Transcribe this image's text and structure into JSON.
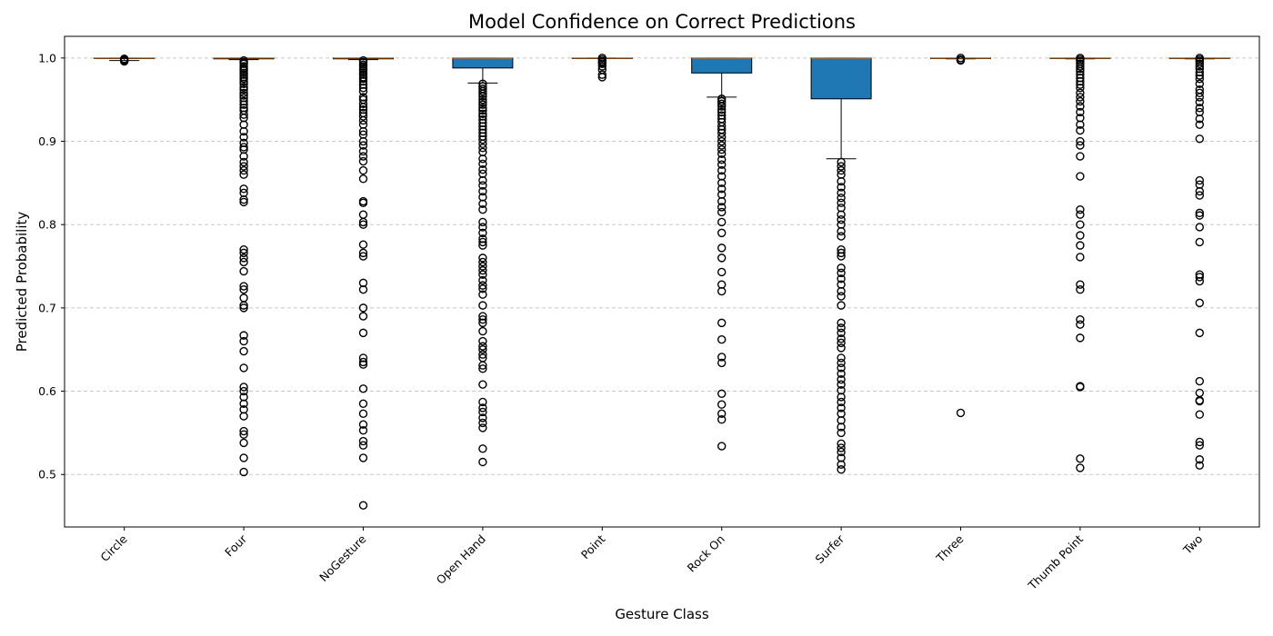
{
  "chart_data": {
    "type": "boxplot",
    "title": "Model Confidence on Correct Predictions",
    "xlabel": "Gesture Class",
    "ylabel": "Predicted Probability",
    "ylim": [
      0.437,
      1.026
    ],
    "yticks": [
      0.5,
      0.6,
      0.7,
      0.8,
      0.9,
      1.0
    ],
    "ytick_labels": [
      "0.5",
      "0.6",
      "0.7",
      "0.8",
      "0.9",
      "1.0"
    ],
    "grid": "y-dashed",
    "colors": {
      "box_fill": "#1f77b4",
      "median": "#ff7f0e",
      "grid": "#c8c8c8",
      "edge": "#000000"
    },
    "categories": [
      "Circle",
      "Four",
      "NoGesture",
      "Open Hand",
      "Point",
      "Rock On",
      "Surfer",
      "Three",
      "Thumb Point",
      "Two"
    ],
    "boxes": [
      {
        "label": "Circle",
        "whislo": 0.997,
        "q1": 1.0,
        "med": 1.0,
        "q3": 1.0,
        "whishi": 1.0,
        "fliers": [
          0.996,
          0.997,
          0.998,
          0.999
        ]
      },
      {
        "label": "Four",
        "whislo": 0.998,
        "q1": 0.999,
        "med": 1.0,
        "q3": 1.0,
        "whishi": 1.0,
        "fliers": [
          0.997,
          0.995,
          0.993,
          0.99,
          0.987,
          0.985,
          0.982,
          0.98,
          0.977,
          0.975,
          0.972,
          0.969,
          0.965,
          0.962,
          0.958,
          0.955,
          0.952,
          0.948,
          0.944,
          0.94,
          0.937,
          0.932,
          0.928,
          0.92,
          0.912,
          0.905,
          0.898,
          0.893,
          0.89,
          0.882,
          0.875,
          0.87,
          0.865,
          0.86,
          0.843,
          0.838,
          0.83,
          0.827,
          0.77,
          0.766,
          0.76,
          0.755,
          0.744,
          0.726,
          0.722,
          0.712,
          0.703,
          0.7,
          0.667,
          0.66,
          0.648,
          0.628,
          0.605,
          0.6,
          0.593,
          0.585,
          0.578,
          0.57,
          0.552,
          0.548,
          0.538,
          0.52,
          0.503
        ]
      },
      {
        "label": "NoGesture",
        "whislo": 0.998,
        "q1": 0.999,
        "med": 1.0,
        "q3": 1.0,
        "whishi": 1.0,
        "fliers": [
          0.997,
          0.995,
          0.992,
          0.99,
          0.987,
          0.985,
          0.982,
          0.98,
          0.977,
          0.975,
          0.972,
          0.968,
          0.964,
          0.96,
          0.953,
          0.95,
          0.945,
          0.941,
          0.938,
          0.934,
          0.93,
          0.925,
          0.92,
          0.912,
          0.908,
          0.9,
          0.895,
          0.888,
          0.882,
          0.876,
          0.865,
          0.855,
          0.828,
          0.826,
          0.812,
          0.803,
          0.8,
          0.776,
          0.766,
          0.762,
          0.73,
          0.722,
          0.7,
          0.69,
          0.67,
          0.64,
          0.635,
          0.632,
          0.603,
          0.585,
          0.573,
          0.56,
          0.553,
          0.54,
          0.535,
          0.52,
          0.463
        ]
      },
      {
        "label": "Open Hand",
        "whislo": 0.97,
        "q1": 0.988,
        "med": 1.0,
        "q3": 1.0,
        "whishi": 1.0,
        "fliers": [
          0.969,
          0.966,
          0.963,
          0.96,
          0.957,
          0.954,
          0.95,
          0.947,
          0.944,
          0.94,
          0.937,
          0.933,
          0.93,
          0.926,
          0.922,
          0.918,
          0.914,
          0.91,
          0.906,
          0.902,
          0.897,
          0.892,
          0.887,
          0.879,
          0.873,
          0.866,
          0.861,
          0.853,
          0.847,
          0.84,
          0.833,
          0.825,
          0.818,
          0.803,
          0.797,
          0.79,
          0.783,
          0.779,
          0.775,
          0.76,
          0.755,
          0.75,
          0.745,
          0.74,
          0.733,
          0.727,
          0.723,
          0.716,
          0.703,
          0.69,
          0.686,
          0.682,
          0.672,
          0.66,
          0.654,
          0.65,
          0.644,
          0.64,
          0.631,
          0.627,
          0.608,
          0.587,
          0.58,
          0.575,
          0.568,
          0.562,
          0.556,
          0.531,
          0.515
        ]
      },
      {
        "label": "Point",
        "whislo": 1.0,
        "q1": 1.0,
        "med": 1.0,
        "q3": 1.0,
        "whishi": 1.0,
        "fliers": [
          1.0,
          0.998,
          0.996,
          0.995,
          0.993,
          0.99,
          0.986,
          0.98,
          0.977
        ]
      },
      {
        "label": "Rock On",
        "whislo": 0.953,
        "q1": 0.982,
        "med": 1.0,
        "q3": 1.0,
        "whishi": 1.0,
        "fliers": [
          0.951,
          0.948,
          0.945,
          0.942,
          0.938,
          0.935,
          0.931,
          0.927,
          0.923,
          0.918,
          0.914,
          0.91,
          0.905,
          0.9,
          0.895,
          0.89,
          0.885,
          0.878,
          0.872,
          0.865,
          0.858,
          0.85,
          0.843,
          0.836,
          0.828,
          0.821,
          0.815,
          0.803,
          0.79,
          0.772,
          0.76,
          0.743,
          0.728,
          0.72,
          0.682,
          0.662,
          0.641,
          0.634,
          0.597,
          0.584,
          0.573,
          0.566,
          0.534
        ]
      },
      {
        "label": "Surfer",
        "whislo": 0.879,
        "q1": 0.951,
        "med": 1.0,
        "q3": 1.0,
        "whishi": 1.0,
        "fliers": [
          0.875,
          0.87,
          0.865,
          0.86,
          0.852,
          0.845,
          0.838,
          0.832,
          0.826,
          0.82,
          0.812,
          0.806,
          0.8,
          0.792,
          0.786,
          0.77,
          0.766,
          0.762,
          0.748,
          0.742,
          0.735,
          0.728,
          0.72,
          0.714,
          0.703,
          0.682,
          0.676,
          0.67,
          0.663,
          0.658,
          0.652,
          0.64,
          0.634,
          0.628,
          0.621,
          0.614,
          0.608,
          0.601,
          0.593,
          0.587,
          0.58,
          0.573,
          0.565,
          0.557,
          0.55,
          0.537,
          0.532,
          0.527,
          0.52,
          0.512,
          0.506
        ]
      },
      {
        "label": "Three",
        "whislo": 0.999,
        "q1": 1.0,
        "med": 1.0,
        "q3": 1.0,
        "whishi": 1.0,
        "fliers": [
          1.0,
          0.998,
          0.997,
          0.574
        ]
      },
      {
        "label": "Thumb Point",
        "whislo": 0.999,
        "q1": 1.0,
        "med": 1.0,
        "q3": 1.0,
        "whishi": 1.0,
        "fliers": [
          1.0,
          0.998,
          0.996,
          0.993,
          0.99,
          0.987,
          0.984,
          0.98,
          0.976,
          0.972,
          0.968,
          0.964,
          0.958,
          0.953,
          0.948,
          0.942,
          0.935,
          0.928,
          0.92,
          0.913,
          0.9,
          0.895,
          0.882,
          0.858,
          0.818,
          0.812,
          0.8,
          0.787,
          0.775,
          0.761,
          0.728,
          0.722,
          0.686,
          0.68,
          0.664,
          0.606,
          0.605,
          0.519,
          0.508
        ]
      },
      {
        "label": "Two",
        "whislo": 0.999,
        "q1": 1.0,
        "med": 1.0,
        "q3": 1.0,
        "whishi": 1.0,
        "fliers": [
          1.0,
          0.998,
          0.996,
          0.993,
          0.99,
          0.987,
          0.983,
          0.979,
          0.975,
          0.969,
          0.962,
          0.958,
          0.953,
          0.947,
          0.94,
          0.935,
          0.927,
          0.92,
          0.903,
          0.853,
          0.848,
          0.84,
          0.835,
          0.814,
          0.811,
          0.797,
          0.779,
          0.74,
          0.737,
          0.732,
          0.706,
          0.67,
          0.612,
          0.598,
          0.589,
          0.588,
          0.572,
          0.539,
          0.535,
          0.518,
          0.511
        ]
      }
    ]
  }
}
